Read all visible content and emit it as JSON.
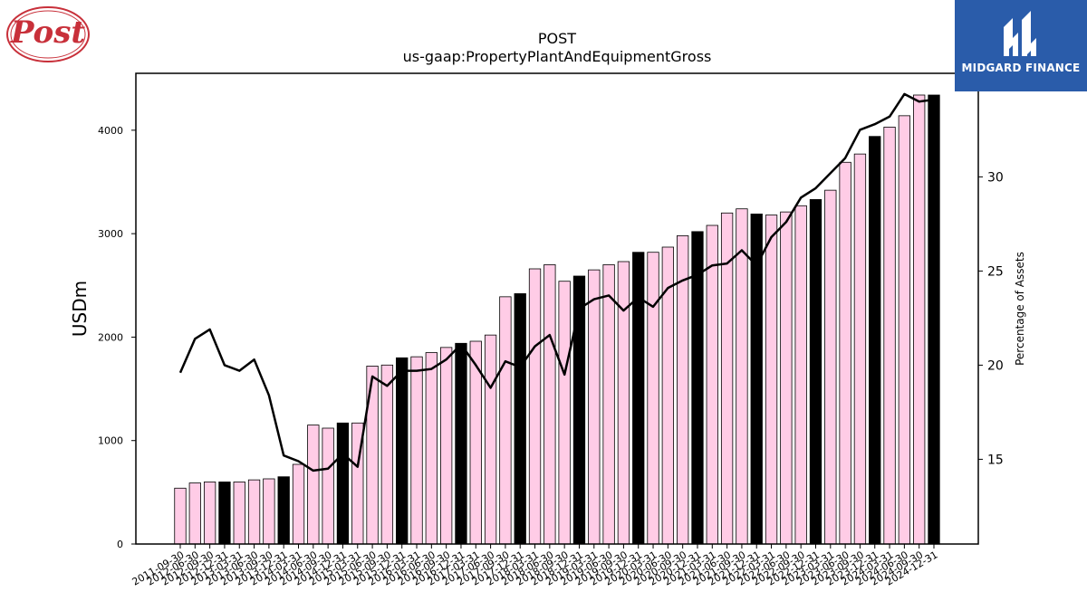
{
  "logo": {
    "text": "Post",
    "color": "#c8303a"
  },
  "brand": {
    "text": "MIDGARD FINANCE",
    "background": "#2a5caa"
  },
  "chart_data": {
    "type": "bar",
    "title": "POST",
    "subtitle": "us-gaap:PropertyPlantAndEquipmentGross",
    "ylabel": "USDm",
    "ylabel_right": "Percentage of Assets",
    "ylim": [
      0,
      4550
    ],
    "ylim_right": [
      10.5,
      35.5
    ],
    "yticks": [
      0,
      1000,
      2000,
      3000,
      4000
    ],
    "yticks_right": [
      15,
      20,
      25,
      30
    ],
    "bar_color": "#ffcce6",
    "highlight_color": "#000000",
    "line_color": "#000000",
    "categories": [
      "2011-09-30",
      "2012-06-30",
      "2012-09-30",
      "2012-12-31",
      "2013-03-31",
      "2013-06-30",
      "2013-09-30",
      "2013-12-31",
      "2014-03-31",
      "2014-06-30",
      "2014-09-30",
      "2014-12-31",
      "2015-03-31",
      "2015-06-30",
      "2015-09-30",
      "2015-12-31",
      "2016-03-31",
      "2016-06-30",
      "2016-09-30",
      "2016-12-31",
      "2017-03-31",
      "2017-06-30",
      "2017-09-30",
      "2017-12-31",
      "2018-03-31",
      "2018-06-30",
      "2018-09-30",
      "2018-12-31",
      "2019-03-31",
      "2019-06-30",
      "2019-09-30",
      "2019-12-31",
      "2020-03-31",
      "2020-06-30",
      "2020-09-30",
      "2020-12-31",
      "2021-03-31",
      "2021-06-30",
      "2021-09-30",
      "2021-12-31",
      "2022-03-31",
      "2022-06-30",
      "2022-09-30",
      "2022-12-31",
      "2023-03-31",
      "2023-06-30",
      "2023-09-30",
      "2023-12-31",
      "2024-03-31",
      "2024-06-30",
      "2024-09-30",
      "2024-12-31"
    ],
    "xtick_labels": [
      "2011-09-30",
      "2012-06-30",
      "2012-09-30",
      "2012-12-31",
      "2013-03-31",
      "2013-06-30",
      "2013-09-30",
      "2013-12-31",
      "2014-03-31",
      "2014-06-30",
      "2014-09-30",
      "2014-12-31",
      "2015-03-31",
      "2015-06-30",
      "2015-09-30",
      "2015-12-31",
      "2016-03-31",
      "2016-06-30",
      "2016-09-30",
      "2016-12-31",
      "2017-03-31",
      "2017-06-30",
      "2017-09-30",
      "2017-12-31",
      "2018-03-31",
      "2018-06-30",
      "2018-09-30",
      "2018-12-31",
      "2019-03-31",
      "2019-06-30",
      "2019-09-30",
      "2019-12-31",
      "2020-03-31",
      "2020-06-30",
      "2020-09-30",
      "2020-12-31",
      "2021-03-31",
      "2021-06-30",
      "2021-09-30",
      "2021-12-31",
      "2022-03-31",
      "2022-06-30",
      "2022-09-30",
      "2022-12-31",
      "2023-03-31",
      "2023-06-30",
      "2023-09-30",
      "2023-12-31",
      "2024-03-31",
      "2024-06-30",
      "2024-09-30",
      "2024-12-31"
    ],
    "series": [
      {
        "type": "bar",
        "values": [
          540,
          590,
          600,
          600,
          600,
          620,
          630,
          650,
          770,
          1150,
          1120,
          1170,
          1170,
          1720,
          1730,
          1800,
          1810,
          1850,
          1900,
          1940,
          1960,
          2020,
          2390,
          2420,
          2660,
          2700,
          2540,
          2590,
          2650,
          2700,
          2730,
          2820,
          2820,
          2870,
          2980,
          3020,
          3080,
          3200,
          3240,
          3190,
          3180,
          3210,
          3270,
          3330,
          3420,
          3690,
          3770,
          3940,
          4030,
          4140,
          4340,
          4340
        ],
        "highlight": [
          false,
          false,
          false,
          true,
          false,
          false,
          false,
          true,
          false,
          false,
          false,
          true,
          false,
          false,
          false,
          true,
          false,
          false,
          false,
          true,
          false,
          false,
          false,
          true,
          false,
          false,
          false,
          true,
          false,
          false,
          false,
          true,
          false,
          false,
          false,
          true,
          false,
          false,
          false,
          true,
          false,
          false,
          false,
          true,
          false,
          false,
          false,
          true,
          false,
          false,
          false,
          true
        ]
      },
      {
        "type": "line",
        "axis": "right",
        "values": [
          19.6,
          21.4,
          21.9,
          20.0,
          19.7,
          20.3,
          18.4,
          15.2,
          14.9,
          14.4,
          14.5,
          15.3,
          14.6,
          19.4,
          18.9,
          19.7,
          19.7,
          19.8,
          20.3,
          21.1,
          20.0,
          18.8,
          20.2,
          19.9,
          21.0,
          21.6,
          19.5,
          23.0,
          23.5,
          23.7,
          22.9,
          23.6,
          23.1,
          24.1,
          24.5,
          24.8,
          25.3,
          25.4,
          26.1,
          25.3,
          26.8,
          27.6,
          28.9,
          29.4,
          30.2,
          31.0,
          32.5,
          32.8,
          33.2,
          34.4,
          34.0,
          34.1
        ]
      }
    ]
  }
}
